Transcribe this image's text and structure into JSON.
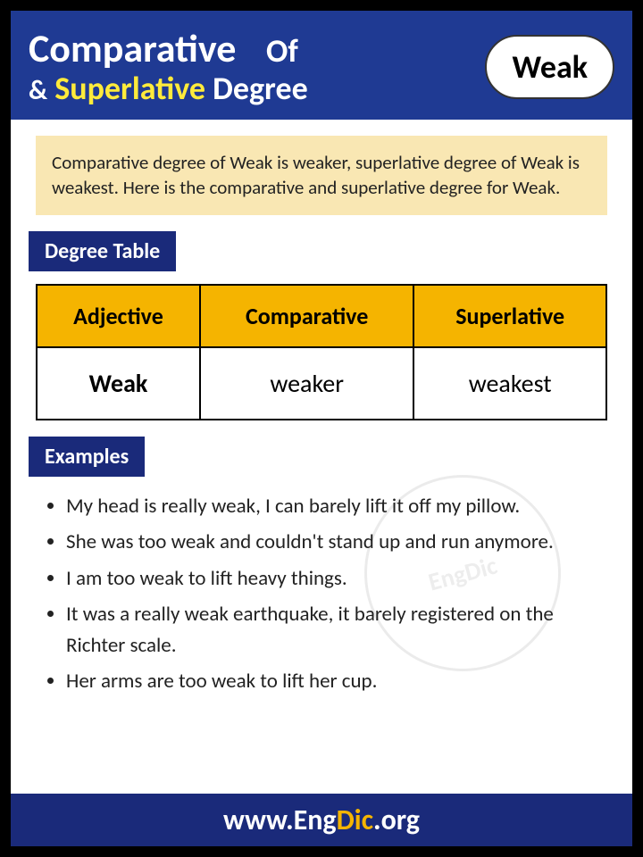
{
  "header": {
    "line1_comparative": "Comparative",
    "line1_of": "Of",
    "amp": "&",
    "superlative": "Superlative",
    "degree": "Degree",
    "word": "Weak"
  },
  "intro": "Comparative degree of Weak is weaker, superlative degree of Weak is weakest. Here is the comparative and superlative degree for Weak.",
  "section_degree_label": "Degree Table",
  "table": {
    "headers": [
      "Adjective",
      "Comparative",
      "Superlative"
    ],
    "row": [
      "Weak",
      "weaker",
      "weakest"
    ]
  },
  "section_examples_label": "Examples",
  "examples": [
    "My head is really weak, I can barely lift it off my pillow.",
    "She was too weak and couldn't stand up and run anymore.",
    "I am too weak to lift heavy things.",
    "It was a really weak earthquake, it barely registered on the Richter scale.",
    "Her arms are too weak to lift her cup."
  ],
  "footer": {
    "prefix": "www.",
    "eng": "Eng",
    "dic": "Dic",
    "suffix": ".org"
  },
  "watermark": "EngDic",
  "colors": {
    "header_bg": "#1f3a93",
    "label_bg": "#1a2a7a",
    "intro_bg": "#f9e7b3",
    "th_bg": "#f5b400",
    "yellow_text": "#ffeb3b",
    "white": "#ffffff",
    "black": "#000000"
  }
}
